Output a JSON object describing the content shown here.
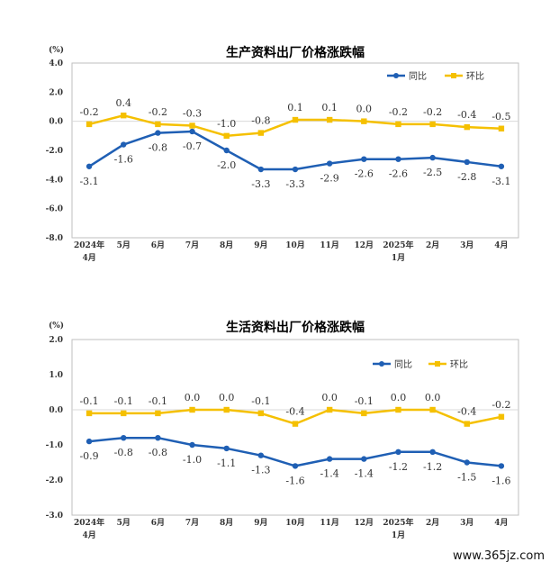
{
  "chart_data": [
    {
      "type": "line",
      "title": "生产资料出厂价格涨跌幅",
      "unit": "(%)",
      "categories": [
        [
          "2024年",
          "4月"
        ],
        [
          "5月"
        ],
        [
          "6月"
        ],
        [
          "7月"
        ],
        [
          "8月"
        ],
        [
          "9月"
        ],
        [
          "10月"
        ],
        [
          "11月"
        ],
        [
          "12月"
        ],
        [
          "2025年",
          "1月"
        ],
        [
          "2月"
        ],
        [
          "3月"
        ],
        [
          "4月"
        ]
      ],
      "ylim": [
        -8.0,
        4.0
      ],
      "yticks": [
        "4.0",
        "2.0",
        "0.0",
        "-2.0",
        "-4.0",
        "-6.0",
        "-8.0"
      ],
      "legend_position": "top-right",
      "series": [
        {
          "name": "同比",
          "color": "#1f5fb4",
          "values": [
            -3.1,
            -1.6,
            -0.8,
            -0.7,
            -2.0,
            -3.3,
            -3.3,
            -2.9,
            -2.6,
            -2.6,
            -2.5,
            -2.8,
            -3.1
          ],
          "labels": [
            "-3.1",
            "-1.6",
            "-0.8",
            "-0.7",
            "-2.0",
            "-3.3",
            "-3.3",
            "-2.9",
            "-2.6",
            "-2.6",
            "-2.5",
            "-2.8",
            "-3.1"
          ]
        },
        {
          "name": "环比",
          "color": "#f5c000",
          "values": [
            -0.2,
            0.4,
            -0.2,
            -0.3,
            -1.0,
            -0.8,
            0.1,
            0.1,
            0.0,
            -0.2,
            -0.2,
            -0.4,
            -0.5
          ],
          "labels": [
            "-0.2",
            "0.4",
            "-0.2",
            "-0.3",
            "-1.0",
            "-0.8",
            "0.1",
            "0.1",
            "0.0",
            "-0.2",
            "-0.2",
            "-0.4",
            "-0.5"
          ]
        }
      ]
    },
    {
      "type": "line",
      "title": "生活资料出厂价格涨跌幅",
      "unit": "(%)",
      "categories": [
        [
          "2024年",
          "4月"
        ],
        [
          "5月"
        ],
        [
          "6月"
        ],
        [
          "7月"
        ],
        [
          "8月"
        ],
        [
          "9月"
        ],
        [
          "10月"
        ],
        [
          "11月"
        ],
        [
          "12月"
        ],
        [
          "2025年",
          "1月"
        ],
        [
          "2月"
        ],
        [
          "3月"
        ],
        [
          "4月"
        ]
      ],
      "ylim": [
        -3.0,
        2.0
      ],
      "yticks": [
        "2.0",
        "1.0",
        "0.0",
        "-1.0",
        "-2.0",
        "-3.0"
      ],
      "legend_position": "top-right",
      "series": [
        {
          "name": "同比",
          "color": "#1f5fb4",
          "values": [
            -0.9,
            -0.8,
            -0.8,
            -1.0,
            -1.1,
            -1.3,
            -1.6,
            -1.4,
            -1.4,
            -1.2,
            -1.2,
            -1.5,
            -1.6
          ],
          "labels": [
            "-0.9",
            "-0.8",
            "-0.8",
            "-1.0",
            "-1.1",
            "-1.3",
            "-1.6",
            "-1.4",
            "-1.4",
            "-1.2",
            "-1.2",
            "-1.5",
            "-1.6"
          ]
        },
        {
          "name": "环比",
          "color": "#f5c000",
          "values": [
            -0.1,
            -0.1,
            -0.1,
            0.0,
            0.0,
            -0.1,
            -0.4,
            0.0,
            -0.1,
            0.0,
            0.0,
            -0.4,
            -0.2
          ],
          "labels": [
            "-0.1",
            "-0.1",
            "-0.1",
            "0.0",
            "0.0",
            "-0.1",
            "-0.4",
            "0.0",
            "-0.1",
            "0.0",
            "0.0",
            "-0.4",
            "-0.2"
          ]
        }
      ]
    }
  ],
  "watermark": "www.365jz.com"
}
